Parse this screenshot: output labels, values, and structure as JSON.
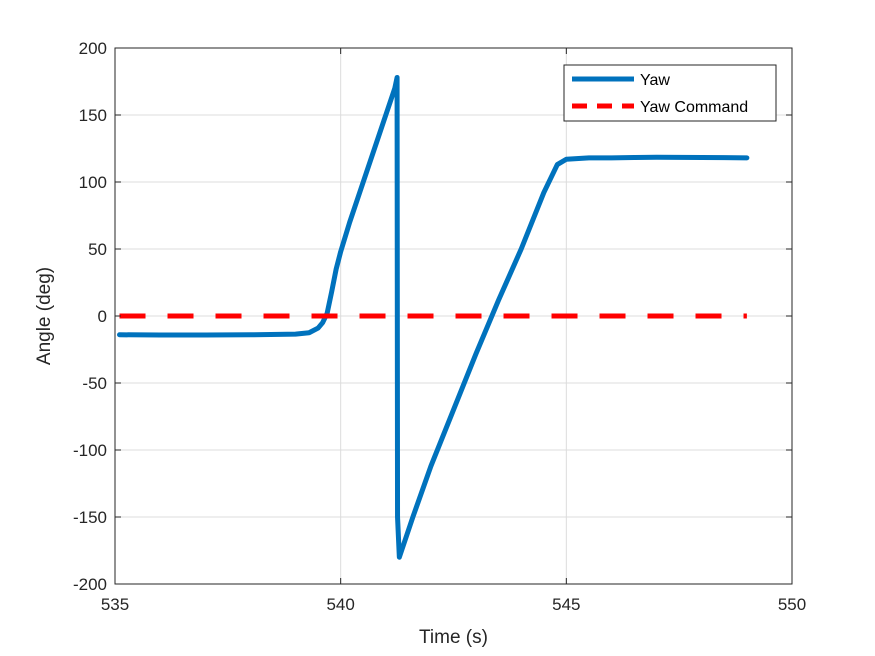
{
  "chart_data": {
    "type": "line",
    "title": "",
    "xlabel": "Time (s)",
    "ylabel": "Angle (deg)",
    "xlim": [
      535,
      550
    ],
    "ylim": [
      -200,
      200
    ],
    "xticks": [
      535,
      540,
      545,
      550
    ],
    "yticks": [
      -200,
      -150,
      -100,
      -50,
      0,
      50,
      100,
      150,
      200
    ],
    "grid": true,
    "legend_position": "top-right",
    "series": [
      {
        "name": "Yaw",
        "color": "#0072BD",
        "style": "solid",
        "x": [
          535.1,
          536,
          537,
          538,
          539,
          539.3,
          539.5,
          539.6,
          539.7,
          539.8,
          539.9,
          540.0,
          540.2,
          540.5,
          540.8,
          541.0,
          541.2,
          541.25,
          541.26,
          541.3,
          541.35,
          541.6,
          542.0,
          542.5,
          543.0,
          543.5,
          544.0,
          544.5,
          544.8,
          545.0,
          545.5,
          546.0,
          546.5,
          547.0,
          547.5,
          548.0,
          548.5,
          549.0
        ],
        "y": [
          -14,
          -14.2,
          -14.2,
          -14,
          -13.5,
          -12.5,
          -9,
          -5,
          2,
          18,
          35,
          48,
          70,
          100,
          130,
          150,
          170,
          178,
          -150,
          -180,
          -175,
          -150,
          -112,
          -70,
          -28,
          12,
          50,
          92,
          113,
          117,
          118,
          118,
          118.3,
          118.5,
          118.4,
          118.3,
          118.2,
          118
        ]
      },
      {
        "name": "Yaw Command",
        "color": "#FF0000",
        "style": "dashed",
        "x": [
          535.1,
          549.0
        ],
        "y": [
          0,
          0
        ]
      }
    ]
  }
}
